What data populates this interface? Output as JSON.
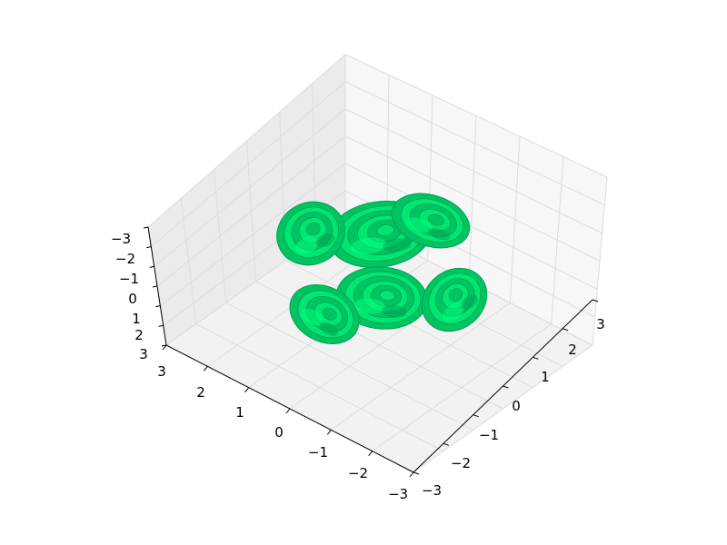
{
  "chart_data": {
    "type": "3d-surface",
    "title": "",
    "xlabel": "",
    "ylabel": "",
    "zlabel": "",
    "xlim": [
      -3,
      3
    ],
    "ylim": [
      -3,
      3
    ],
    "zlim": [
      -3,
      3
    ],
    "grid": true,
    "x_ticks": [
      "3",
      "2",
      "1",
      "0",
      "−1",
      "−2",
      "−3"
    ],
    "y_ticks": [
      "−3",
      "−2",
      "−1",
      "0",
      "1",
      "2",
      "3"
    ],
    "z_ticks": [
      "−3",
      "−2",
      "−1",
      "0",
      "1",
      "2",
      "3"
    ],
    "surface_colors": [
      "#00e673",
      "#00c462",
      "#00a050",
      "#00ff80",
      "#1fd17a"
    ],
    "pane_colors": [
      "#f2f2f2",
      "#ebebeb",
      "#f7f7f7"
    ]
  }
}
